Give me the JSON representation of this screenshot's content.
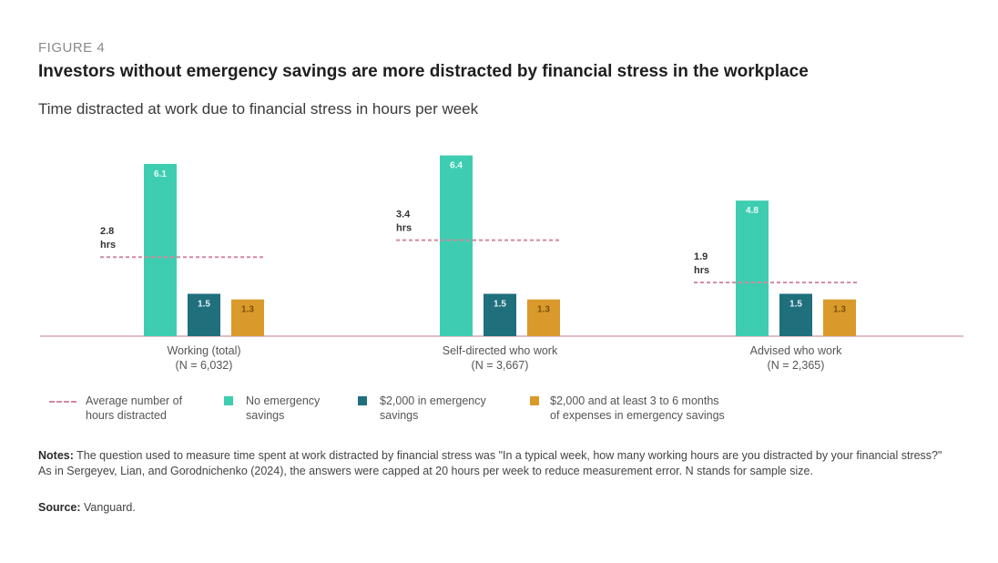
{
  "figure_label": "FIGURE 4",
  "title": "Investors without emergency savings are more distracted by financial stress in the workplace",
  "subtitle": "Time distracted at work due to financial stress in hours per week",
  "chart_data": {
    "type": "bar",
    "title": "Investors without emergency savings are more distracted by financial stress in the workplace",
    "subtitle": "Time distracted at work due to financial stress in hours per week",
    "groups": [
      {
        "label": "Working (total)",
        "n_label": "(N = 6,032)",
        "values": [
          6.1,
          1.5,
          1.3
        ],
        "average": 2.8,
        "average_label": [
          "2.8",
          "hrs"
        ]
      },
      {
        "label": "Self-directed who work",
        "n_label": "(N = 3,667)",
        "values": [
          6.4,
          1.5,
          1.3
        ],
        "average": 3.4,
        "average_label": [
          "3.4",
          "hrs"
        ]
      },
      {
        "label": "Advised who work",
        "n_label": "(N = 2,365)",
        "values": [
          4.8,
          1.5,
          1.3
        ],
        "average": 1.9,
        "average_label": [
          "1.9",
          "hrs"
        ]
      }
    ],
    "series": [
      {
        "name": "No emergency savings",
        "color": "#3ecdb0"
      },
      {
        "name": "$2,000 in emergency savings",
        "color": "#1f6f7c"
      },
      {
        "name": "$2,000 and at least 3 to 6 months of expenses in emergency savings",
        "color": "#d99a2b"
      }
    ],
    "average_line": {
      "name": "Average number of hours distracted",
      "color": "#d48a9e",
      "style": "dashed"
    },
    "ylim": [
      0,
      7
    ],
    "baseline_color": "#d7a6b6",
    "grid": false
  },
  "legend": {
    "average_line": [
      "Average number of",
      "hours distracted"
    ],
    "series_0": [
      "No emergency",
      "savings"
    ],
    "series_1": [
      "$2,000 in emergency",
      "savings"
    ],
    "series_2": [
      "$2,000 and at least 3 to 6 months",
      "of expenses in emergency savings"
    ]
  },
  "notes": {
    "label": "Notes:",
    "text": " The question used to measure time spent at work distracted by financial stress was \"In a typical week, how many working hours are you distracted by your financial stress?\" As in Sergeyev, Lian, and Gorodnichenko (2024), the answers were capped at 20 hours per week to reduce measurement error. N stands for sample size."
  },
  "source": {
    "label": "Source:",
    "text": " Vanguard."
  }
}
